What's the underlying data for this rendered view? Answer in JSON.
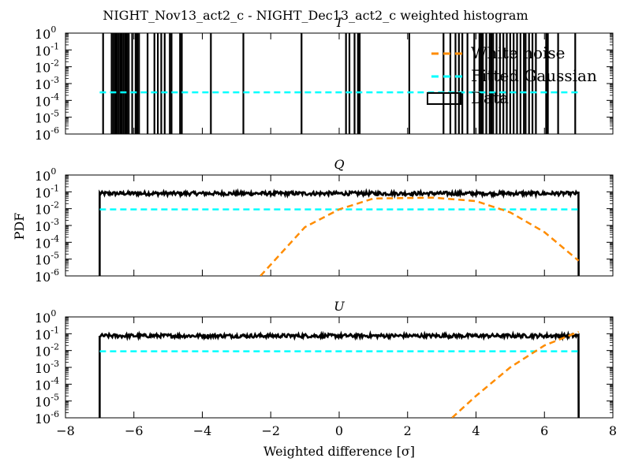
{
  "chart_data": {
    "figure_title": "NIGHT_Nov13_act2_c - NIGHT_Dec13_act2_c weighted histogram",
    "xlabel": "Weighted difference [σ]",
    "ylabel": "PDF",
    "xlim": [
      -8,
      8
    ],
    "xticks": [
      -8,
      -6,
      -4,
      -2,
      0,
      2,
      4,
      6,
      8
    ],
    "x_tick_labels": [
      "−8",
      "−6",
      "−4",
      "−2",
      "0",
      "2",
      "4",
      "6",
      "8"
    ],
    "ylim": [
      1e-06,
      1
    ],
    "yscale": "log",
    "y_tick_labels": [
      {
        "base": "10",
        "exp": "0"
      },
      {
        "base": "10",
        "exp": "-1"
      },
      {
        "base": "10",
        "exp": "-2"
      },
      {
        "base": "10",
        "exp": "-3"
      },
      {
        "base": "10",
        "exp": "-4"
      },
      {
        "base": "10",
        "exp": "-5"
      },
      {
        "base": "10",
        "exp": "-6"
      }
    ],
    "legend": {
      "placement": "top-right of first panel",
      "entries": [
        {
          "label": "White noise",
          "color": "#ff8c00",
          "style": "dashed"
        },
        {
          "label": "Fitted Gaussian",
          "color": "#00ffff",
          "style": "dashed"
        },
        {
          "label": "Data",
          "color": "#000000",
          "style": "box"
        }
      ]
    },
    "colors": {
      "data": "#000000",
      "white_noise": "#ff8c00",
      "fitted_gaussian": "#00ffff"
    },
    "panels": [
      {
        "title": "I",
        "type": "histogram",
        "data_range": [
          -7,
          7
        ],
        "data_spikes_x": [
          -6.9,
          -6.65,
          -6.6,
          -6.55,
          -6.5,
          -6.45,
          -6.4,
          -6.35,
          -6.3,
          -6.25,
          -6.2,
          -6.15,
          -6.05,
          -5.95,
          -5.9,
          -5.85,
          -5.6,
          -5.4,
          -5.3,
          -5.2,
          -5.1,
          -4.95,
          -4.9,
          -4.65,
          -4.6,
          -3.75,
          -2.8,
          -1.1,
          0.2,
          0.3,
          0.45,
          0.55,
          0.6,
          2.05,
          3.05,
          3.25,
          3.4,
          3.5,
          3.6,
          3.75,
          3.95,
          4.1,
          4.15,
          4.2,
          4.3,
          4.4,
          4.45,
          4.5,
          4.6,
          4.7,
          4.8,
          4.9,
          5.0,
          5.1,
          5.2,
          5.3,
          5.4,
          5.45,
          5.55,
          5.65,
          5.75,
          6.05,
          6.1,
          6.4,
          6.9
        ],
        "fitted_gaussian_level": 0.0003,
        "fitted_gaussian_range": [
          -7,
          7
        ],
        "white_noise_visible": false
      },
      {
        "title": "Q",
        "type": "histogram",
        "data_range": [
          -7,
          7
        ],
        "data_level": 0.08,
        "fitted_gaussian_level": 0.009,
        "fitted_gaussian_range": [
          -7,
          7
        ],
        "white_noise_peak_x": 2.75,
        "white_noise_peak": 0.045,
        "white_noise_points": [
          [
            -2.3,
            1e-06
          ],
          [
            -1,
            0.0008
          ],
          [
            0,
            0.009
          ],
          [
            1,
            0.04
          ],
          [
            2.75,
            0.045
          ],
          [
            4,
            0.028
          ],
          [
            5,
            0.006
          ],
          [
            6,
            0.0004
          ],
          [
            7,
            8e-06
          ]
        ]
      },
      {
        "title": "U",
        "type": "histogram",
        "data_range": [
          -7,
          7
        ],
        "data_level": 0.075,
        "fitted_gaussian_level": 0.009,
        "fitted_gaussian_range": [
          -7,
          7
        ],
        "white_noise_points": [
          [
            3.3,
            1e-06
          ],
          [
            4,
            2e-05
          ],
          [
            5,
            0.001
          ],
          [
            6,
            0.02
          ],
          [
            7,
            0.13
          ]
        ]
      }
    ]
  }
}
